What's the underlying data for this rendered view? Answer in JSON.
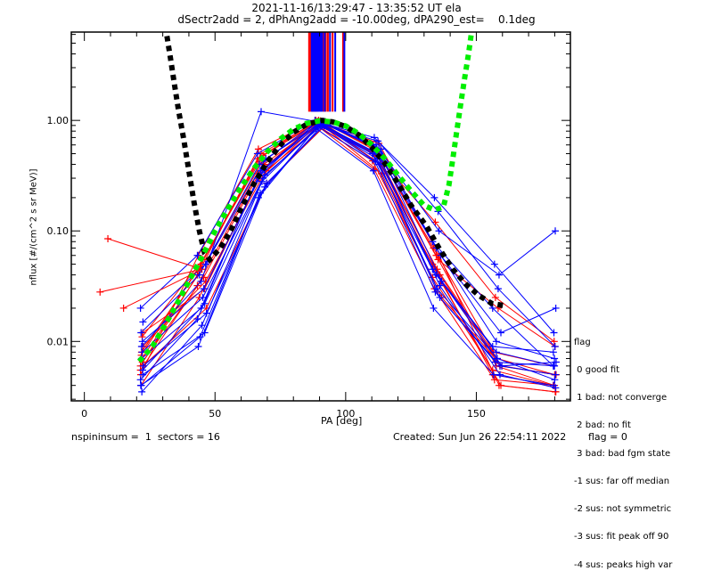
{
  "header": {
    "title_line1": "2021-11-16/13:29:47 - 13:35:52 UT ela",
    "title_line2": "dSectr2add = 2, dPhAng2add = -10.00deg, dPA290_est=    0.1deg"
  },
  "footer": {
    "left": "nspininsum =  1  sectors = 16",
    "created": "Created: Sun Jun 26 22:54:11 2022",
    "flag": "flag = 0"
  },
  "legend": {
    "title": "flag",
    "items": [
      " 0 good fit",
      " 1 bad: not converge",
      " 2 bad: no fit",
      " 3 bad: bad fgm state",
      "-1 sus: far off median",
      "-2 sus: not symmetric",
      "-3 sus: fit peak off 90",
      "-4 sus: peaks high var"
    ]
  },
  "colors": {
    "series_a": "#ff0000",
    "series_b": "#0000ff",
    "fit_black": "#000000",
    "fit_green": "#00ee00",
    "axis": "#000000"
  },
  "chart_data": {
    "type": "line",
    "title": "2021-11-16/13:29:47 - 13:35:52 UT ela",
    "subtitle": "dSectr2add = 2, dPhAng2add = -10.00deg, dPA290_est=    0.1deg",
    "xlabel": "PA [deg]",
    "ylabel": "nflux [#/(cm^2 s sr MeV)]",
    "xlim": [
      -5,
      186
    ],
    "ylim": [
      0.0029,
      6.3
    ],
    "yscale": "log",
    "xticks": [
      0,
      50,
      100,
      150
    ],
    "xtick_labels": [
      "0",
      "50",
      "100",
      "150"
    ],
    "yticks": [
      0.01,
      0.1,
      1.0
    ],
    "ytick_labels": [
      "0.01",
      "0.10",
      "1.00"
    ],
    "grid": false,
    "legend_placement": "right-bottom-outside",
    "vertical_markers": {
      "description": "peak PA markers per spin, drawn from top down to ~1.2",
      "red_pa": [
        86.0,
        86.6,
        87.2,
        87.8,
        88.4,
        89.0,
        91.5,
        92.4,
        93.2,
        95.0,
        99.0
      ],
      "blue_pa": [
        87.0,
        87.5,
        88.0,
        88.5,
        89.0,
        89.5,
        90.0,
        90.5,
        91.0,
        92.0,
        94.0,
        96.0,
        99.5
      ],
      "y_bottom": 1.2
    },
    "fit_black": {
      "name": "fit (black)",
      "points": [
        [
          31.6,
          5.8
        ],
        [
          33.0,
          3.6
        ],
        [
          34.5,
          2.1
        ],
        [
          36.0,
          1.25
        ],
        [
          38.0,
          0.68
        ],
        [
          40.0,
          0.35
        ],
        [
          42.0,
          0.18
        ],
        [
          44.0,
          0.1
        ],
        [
          46.0,
          0.063
        ],
        [
          48.0,
          0.055
        ],
        [
          52.0,
          0.07
        ],
        [
          56.0,
          0.1
        ],
        [
          60.0,
          0.16
        ],
        [
          65.0,
          0.27
        ],
        [
          70.0,
          0.42
        ],
        [
          75.0,
          0.6
        ],
        [
          80.0,
          0.78
        ],
        [
          85.0,
          0.92
        ],
        [
          90.8,
          1.0
        ],
        [
          95.0,
          0.97
        ],
        [
          100.0,
          0.88
        ],
        [
          105.0,
          0.74
        ],
        [
          110.0,
          0.57
        ],
        [
          115.0,
          0.41
        ],
        [
          120.0,
          0.27
        ],
        [
          125.0,
          0.17
        ],
        [
          131.0,
          0.11
        ],
        [
          136.0,
          0.068
        ],
        [
          141.0,
          0.045
        ],
        [
          146.0,
          0.033
        ],
        [
          151.0,
          0.026
        ],
        [
          156.0,
          0.022
        ],
        [
          161.0,
          0.021
        ]
      ]
    },
    "fit_green": {
      "name": "fit (green)",
      "points": [
        [
          21.0,
          0.0066
        ],
        [
          26.0,
          0.009
        ],
        [
          30.0,
          0.013
        ],
        [
          35.0,
          0.021
        ],
        [
          40.0,
          0.035
        ],
        [
          45.0,
          0.058
        ],
        [
          50.0,
          0.1
        ],
        [
          55.0,
          0.16
        ],
        [
          60.0,
          0.25
        ],
        [
          65.0,
          0.37
        ],
        [
          70.0,
          0.52
        ],
        [
          75.0,
          0.68
        ],
        [
          80.0,
          0.83
        ],
        [
          85.0,
          0.94
        ],
        [
          90.0,
          0.99
        ],
        [
          95.0,
          0.97
        ],
        [
          100.0,
          0.89
        ],
        [
          105.0,
          0.76
        ],
        [
          110.0,
          0.6
        ],
        [
          115.0,
          0.45
        ],
        [
          120.0,
          0.32
        ],
        [
          125.0,
          0.23
        ],
        [
          130.0,
          0.17
        ],
        [
          134.0,
          0.155
        ],
        [
          137.4,
          0.165
        ],
        [
          139.5,
          0.26
        ],
        [
          141.0,
          0.45
        ],
        [
          142.5,
          0.8
        ],
        [
          144.0,
          1.4
        ],
        [
          145.5,
          2.4
        ],
        [
          147.0,
          4.0
        ],
        [
          148.0,
          5.9
        ]
      ]
    },
    "trace_series": {
      "description": "pitch-angle distributions per spin; red and blue families, '+' markers at each PA sample",
      "pa_samples": [
        22,
        45,
        68,
        90,
        112,
        135,
        158,
        180
      ],
      "red": [
        [
          0.006,
          0.04,
          0.45,
          0.98,
          0.5,
          0.05,
          0.005,
          0.004
        ],
        [
          0.008,
          0.05,
          0.5,
          1.0,
          0.55,
          0.06,
          0.006,
          0.004
        ],
        [
          0.012,
          0.03,
          0.38,
          0.95,
          0.45,
          0.04,
          0.006,
          0.005
        ],
        [
          0.005,
          0.06,
          0.55,
          1.0,
          0.6,
          0.07,
          0.008,
          0.006
        ],
        [
          0.007,
          0.045,
          0.42,
          0.97,
          0.48,
          0.045,
          0.007,
          0.005
        ],
        [
          0.009,
          0.035,
          0.35,
          0.92,
          0.4,
          0.035,
          0.004,
          0.0035
        ],
        [
          0.004,
          0.025,
          0.3,
          0.9,
          0.36,
          0.03,
          0.0045,
          0.004
        ],
        [
          0.011,
          0.055,
          0.48,
          0.99,
          0.52,
          0.055,
          0.02,
          0.009
        ],
        [
          0.006,
          0.02,
          0.27,
          0.88,
          0.33,
          0.025,
          0.006,
          0.005
        ],
        [
          0.0075,
          0.048,
          0.46,
          0.98,
          0.5,
          0.12,
          0.025,
          0.01
        ],
        [
          0.0065,
          0.038,
          0.4,
          0.96,
          0.62,
          0.06,
          0.004,
          0.0035
        ],
        [
          0.0055,
          0.032,
          0.33,
          0.93,
          0.43,
          0.038,
          0.0055,
          0.004
        ]
      ],
      "blue": [
        [
          0.02,
          0.06,
          0.5,
          1.0,
          0.6,
          0.08,
          0.02,
          0.006
        ],
        [
          0.007,
          0.02,
          0.35,
          0.95,
          0.5,
          0.04,
          0.008,
          0.006
        ],
        [
          0.005,
          0.012,
          0.25,
          0.9,
          0.4,
          0.025,
          0.006,
          0.005
        ],
        [
          0.004,
          0.009,
          0.2,
          0.85,
          0.35,
          0.02,
          0.005,
          0.004
        ],
        [
          0.0035,
          0.014,
          0.28,
          0.92,
          0.45,
          0.03,
          0.007,
          0.0045
        ],
        [
          0.015,
          0.05,
          0.45,
          0.98,
          0.55,
          0.06,
          0.012,
          0.02
        ],
        [
          0.012,
          0.04,
          0.4,
          0.97,
          0.7,
          0.2,
          0.05,
          0.012
        ],
        [
          0.008,
          0.025,
          0.3,
          0.93,
          0.65,
          0.15,
          0.03,
          0.009
        ],
        [
          0.006,
          0.018,
          0.27,
          0.9,
          0.48,
          0.035,
          0.006,
          0.0065
        ],
        [
          0.004,
          0.011,
          0.22,
          0.88,
          0.42,
          0.028,
          0.0065,
          0.006
        ],
        [
          0.01,
          0.03,
          0.36,
          0.96,
          0.55,
          0.1,
          0.04,
          0.1
        ],
        [
          0.0045,
          0.016,
          0.3,
          0.94,
          0.5,
          0.045,
          0.009,
          0.008
        ],
        [
          0.009,
          0.035,
          1.2,
          0.97,
          0.6,
          0.07,
          0.01,
          0.007
        ],
        [
          0.0055,
          0.022,
          0.32,
          0.91,
          0.46,
          0.032,
          0.005,
          0.0038
        ]
      ],
      "outliers_red": [
        [
          9,
          0.085
        ],
        [
          6,
          0.028
        ],
        [
          15,
          0.02
        ]
      ]
    }
  }
}
